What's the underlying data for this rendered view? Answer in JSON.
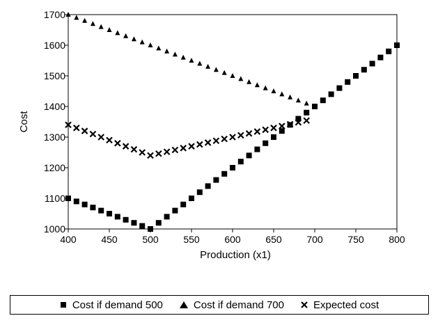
{
  "chart_data": {
    "type": "scatter",
    "title": "",
    "xlabel": "Production (x1)",
    "ylabel": "Cost",
    "xlim": [
      400,
      800
    ],
    "ylim": [
      1000,
      1700
    ],
    "xticks": [
      400,
      450,
      500,
      550,
      600,
      650,
      700,
      750,
      800
    ],
    "yticks": [
      1000,
      1100,
      1200,
      1300,
      1400,
      1500,
      1600,
      1700
    ],
    "grid": false,
    "legend_position": "bottom",
    "series": [
      {
        "name": "Cost if demand 500",
        "marker": "square",
        "x": [
          400,
          410,
          420,
          430,
          440,
          450,
          460,
          470,
          480,
          490,
          500,
          510,
          520,
          530,
          540,
          550,
          560,
          570,
          580,
          590,
          600,
          610,
          620,
          630,
          640,
          650,
          660,
          670,
          680,
          690,
          700,
          710,
          720,
          730,
          740,
          750,
          760,
          770,
          780,
          790,
          800
        ],
        "y": [
          1100,
          1090,
          1080,
          1070,
          1060,
          1050,
          1040,
          1030,
          1020,
          1010,
          1000,
          1020,
          1040,
          1060,
          1080,
          1100,
          1120,
          1140,
          1160,
          1180,
          1200,
          1220,
          1240,
          1260,
          1280,
          1300,
          1320,
          1340,
          1360,
          1380,
          1400,
          1420,
          1440,
          1460,
          1480,
          1500,
          1520,
          1540,
          1560,
          1580,
          1600
        ]
      },
      {
        "name": "Cost if demand 700",
        "marker": "triangle",
        "x": [
          400,
          410,
          420,
          430,
          440,
          450,
          460,
          470,
          480,
          490,
          500,
          510,
          520,
          530,
          540,
          550,
          560,
          570,
          580,
          590,
          600,
          610,
          620,
          630,
          640,
          650,
          660,
          670,
          680,
          690
        ],
        "y": [
          1700,
          1690,
          1680,
          1670,
          1660,
          1650,
          1640,
          1630,
          1620,
          1610,
          1600,
          1590,
          1580,
          1570,
          1560,
          1550,
          1540,
          1530,
          1520,
          1510,
          1500,
          1490,
          1480,
          1470,
          1460,
          1450,
          1440,
          1430,
          1420,
          1410
        ]
      },
      {
        "name": "Expected cost",
        "marker": "x",
        "x": [
          400,
          410,
          420,
          430,
          440,
          450,
          460,
          470,
          480,
          490,
          500,
          510,
          520,
          530,
          540,
          550,
          560,
          570,
          580,
          590,
          600,
          610,
          620,
          630,
          640,
          650,
          660,
          670,
          680,
          690
        ],
        "y": [
          1340,
          1330,
          1320,
          1310,
          1300,
          1290,
          1280,
          1270,
          1260,
          1250,
          1240,
          1246,
          1252,
          1258,
          1264,
          1270,
          1276,
          1282,
          1288,
          1294,
          1300,
          1306,
          1312,
          1318,
          1324,
          1330,
          1336,
          1342,
          1348,
          1354
        ]
      }
    ]
  }
}
